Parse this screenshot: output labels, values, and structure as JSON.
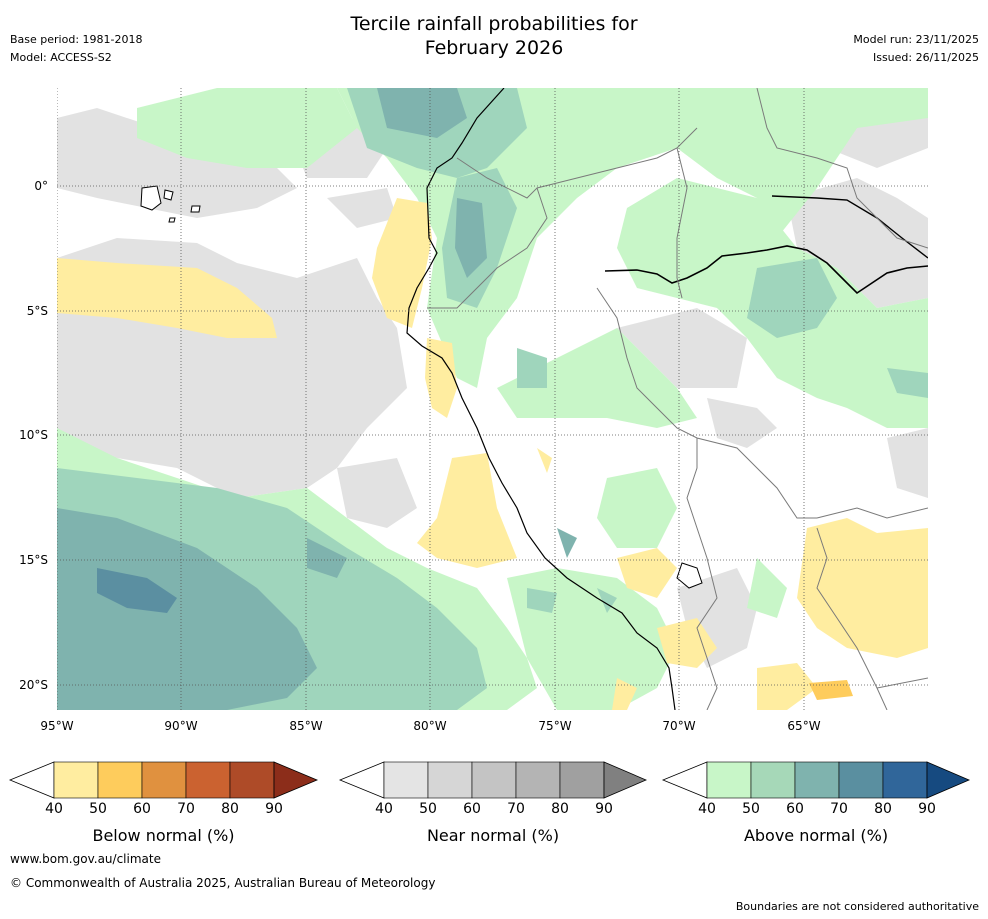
{
  "title": {
    "line1": "Tercile rainfall probabilities for",
    "line2": "February 2026"
  },
  "meta_left": {
    "base_period": "Base period: 1981-2018",
    "model": "Model: ACCESS-S2"
  },
  "meta_right": {
    "model_run": "Model run: 23/11/2025",
    "issued": "Issued: 26/11/2025"
  },
  "map": {
    "lat_labels": [
      "0°",
      "5°S",
      "10°S",
      "15°S",
      "20°S"
    ],
    "lon_labels": [
      "95°W",
      "90°W",
      "85°W",
      "80°W",
      "75°W",
      "70°W",
      "65°W"
    ]
  },
  "colorbars": [
    {
      "title": "Below normal (%)",
      "ticks": [
        "40",
        "50",
        "60",
        "70",
        "80",
        "90"
      ],
      "colors": [
        "#ffeda0",
        "#fecc5c",
        "#e0913f",
        "#cb6230",
        "#ae4b28",
        "#8c2d1a"
      ]
    },
    {
      "title": "Near normal (%)",
      "ticks": [
        "40",
        "50",
        "60",
        "70",
        "80",
        "90"
      ],
      "colors": [
        "#e4e4e4",
        "#d6d6d6",
        "#c4c4c4",
        "#b4b4b4",
        "#a0a0a0",
        "#808080"
      ]
    },
    {
      "title": "Above normal (%)",
      "ticks": [
        "40",
        "50",
        "60",
        "70",
        "80",
        "90"
      ],
      "colors": [
        "#c8f6c8",
        "#a6d8b8",
        "#7fb3ae",
        "#5a8fa0",
        "#30669a",
        "#164a80"
      ]
    }
  ],
  "colors": {
    "below_40": "#ffeda0",
    "near_40": "#e4e4e4",
    "near_50": "#d6d6d6",
    "above_40": "#c8f6c8",
    "above_50": "#9fd5bc",
    "above_60": "#7fb3ae",
    "above_70": "#5b8fa1",
    "coast": "#000000",
    "border": "#7a7a7a",
    "grid": "#555555"
  },
  "footer": {
    "url": "www.bom.gov.au/climate",
    "copyright": "© Commonwealth of Australia 2025, Australian Bureau of Meteorology",
    "note": "Boundaries are not considered authoritative"
  }
}
